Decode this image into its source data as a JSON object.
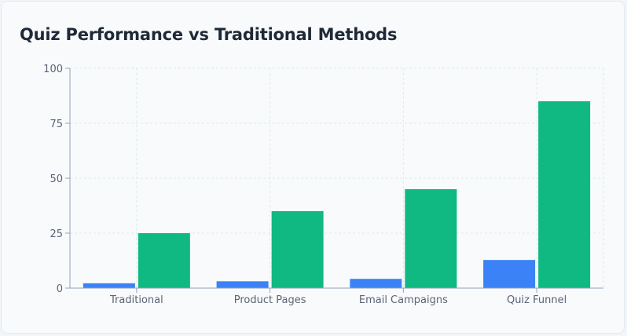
{
  "title": "Quiz Performance vs Traditional Methods",
  "colors": {
    "series_1": "#3b82f6",
    "series_2": "#10b981",
    "grid": "#d7eee6",
    "axis": "#94a3b8",
    "text": "#5b6475"
  },
  "chart_data": {
    "type": "bar",
    "title": "Quiz Performance vs Traditional Methods",
    "xlabel": "",
    "ylabel": "",
    "categories": [
      "Traditional",
      "Product Pages",
      "Email Campaigns",
      "Quiz Funnel"
    ],
    "series": [
      {
        "values": [
          2.2,
          3.1,
          4.2,
          12.8
        ],
        "color": "#3b82f6"
      },
      {
        "values": [
          25,
          35,
          45,
          85
        ],
        "color": "#10b981"
      }
    ],
    "ylim": [
      0,
      100
    ],
    "yticks": [
      0,
      25,
      50,
      75,
      100
    ],
    "grid": true,
    "legend": "none"
  }
}
